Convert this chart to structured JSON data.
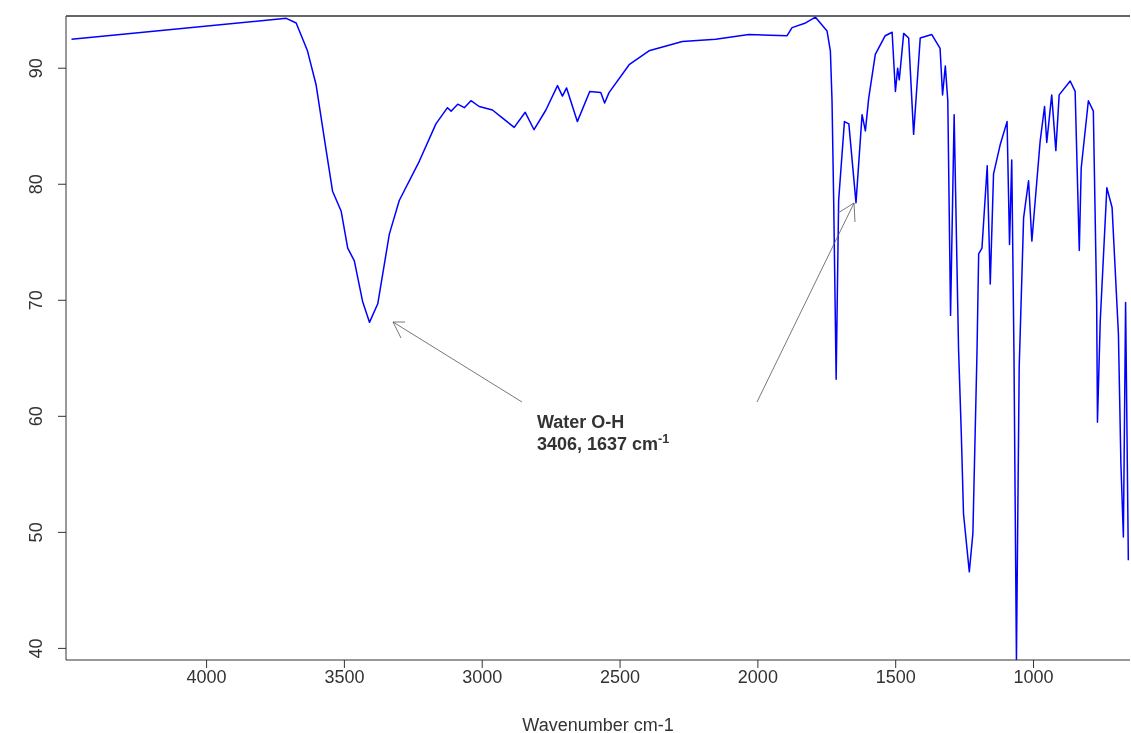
{
  "chart_data": {
    "type": "line",
    "xlabel": "Wavenumber cm-1",
    "xlim": [
      4510,
      650
    ],
    "ylim": [
      39,
      94.5
    ],
    "xticks": [
      4000,
      3500,
      3000,
      2500,
      2000,
      1500,
      1000
    ],
    "yticks": [
      40,
      50,
      60,
      70,
      80,
      90
    ],
    "grid": false,
    "legend": false,
    "marker": "none",
    "line_style": "solid",
    "annotations": [
      "Water O-H\n3406, 1637 cm$^{-1}$"
    ],
    "series": [
      {
        "color": "#0000ff",
        "x": [
          4490,
          3711,
          3675,
          3634,
          3603,
          3566,
          3543,
          3512,
          3488,
          3464,
          3434,
          3409,
          3379,
          3337,
          3301,
          3228,
          3168,
          3126,
          3113,
          3089,
          3065,
          3041,
          3011,
          2963,
          2926,
          2884,
          2844,
          2812,
          2769,
          2727,
          2709,
          2694,
          2655,
          2610,
          2570,
          2556,
          2540,
          2467,
          2395,
          2274,
          2153,
          2033,
          1894,
          1876,
          1827,
          1791,
          1749,
          1737,
          1731,
          1725,
          1716,
          1707,
          1686,
          1670,
          1644,
          1622,
          1610,
          1598,
          1574,
          1538,
          1513,
          1501,
          1493,
          1487,
          1471,
          1453,
          1435,
          1411,
          1369,
          1339,
          1330,
          1320,
          1311,
          1301,
          1288,
          1272,
          1262,
          1254,
          1233,
          1220,
          1205,
          1199,
          1187,
          1168,
          1157,
          1145,
          1121,
          1096,
          1087,
          1079,
          1071,
          1062,
          1052,
          1036,
          1018,
          1006,
          997,
          976,
          960,
          952,
          934,
          919,
          907,
          867,
          849,
          834,
          827,
          801,
          783,
          771,
          768,
          758,
          734,
          715,
          692,
          683,
          674,
          666,
          656
        ],
        "values": [
          92.5,
          94.3,
          93.9,
          91.5,
          88.6,
          82.9,
          79.4,
          77.7,
          74.5,
          73.4,
          69.9,
          68.1,
          69.7,
          75.7,
          78.6,
          82.0,
          85.2,
          86.6,
          86.3,
          86.9,
          86.6,
          87.2,
          86.7,
          86.4,
          85.7,
          84.9,
          86.2,
          84.7,
          86.4,
          88.5,
          87.6,
          88.3,
          85.4,
          88.0,
          87.9,
          87.0,
          87.9,
          90.3,
          91.5,
          92.3,
          92.5,
          92.9,
          92.8,
          93.5,
          93.9,
          94.4,
          93.2,
          91.5,
          87.2,
          78.6,
          63.2,
          78.6,
          85.4,
          85.2,
          78.4,
          86.0,
          84.6,
          87.4,
          91.2,
          92.8,
          93.1,
          88.0,
          90.0,
          89.0,
          93.0,
          92.6,
          84.3,
          92.6,
          92.9,
          91.7,
          87.7,
          90.2,
          87.2,
          68.7,
          86.0,
          65.8,
          58.5,
          51.6,
          46.6,
          49.9,
          65.6,
          74.0,
          74.5,
          81.6,
          71.4,
          80.9,
          83.4,
          85.4,
          74.8,
          82.1,
          65.6,
          39.0,
          64.2,
          77.1,
          80.3,
          75.1,
          77.7,
          83.7,
          86.7,
          83.6,
          87.7,
          82.9,
          87.7,
          88.9,
          88.0,
          74.3,
          81.4,
          87.2,
          86.3,
          69.9,
          59.5,
          68.2,
          79.7,
          78.0,
          67.1,
          55.9,
          49.6,
          69.8,
          47.6
        ]
      }
    ]
  }
}
